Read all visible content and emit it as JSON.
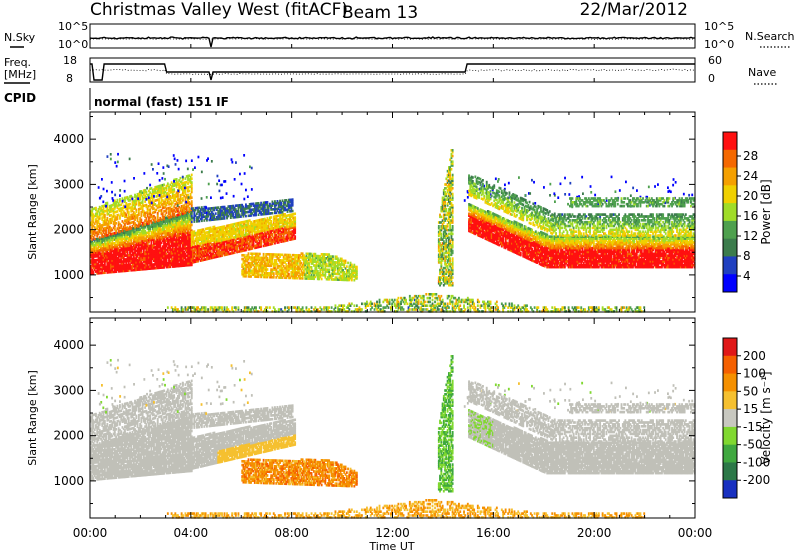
{
  "header": {
    "station": "Christmas Valley West (fitACF)",
    "beam": "Beam 13",
    "date": "22/Mar/2012"
  },
  "aux_panels": {
    "nsky_label": "N.Sky",
    "nsearch_label": "N.Search",
    "noise_ticks": [
      "10^5",
      "10^0"
    ],
    "freq_label_1": "Freq.",
    "freq_label_2": "[MHz]",
    "freq_ticks": [
      "18",
      "8"
    ],
    "nave_label": "Nave",
    "nave_ticks": [
      "60",
      "0"
    ],
    "cpid_label": "CPID",
    "cpid_value": "normal (fast) 151 IF"
  },
  "chart_data": [
    {
      "type": "heatmap",
      "name": "power",
      "ylabel": "Slant Range [km]",
      "xlabel": "",
      "x_ticks": [
        "00:00",
        "04:00",
        "08:00",
        "12:00",
        "16:00",
        "20:00",
        "00:00"
      ],
      "x_range_hours": [
        0,
        24
      ],
      "y_ticks": [
        1000,
        2000,
        3000,
        4000
      ],
      "y_range_km": [
        180,
        4600
      ],
      "colorbar": {
        "label": "Power [dB]",
        "ticks": [
          4,
          8,
          12,
          16,
          20,
          24,
          28
        ],
        "range": [
          0,
          32
        ],
        "colors": [
          "#0000ff",
          "#2040c0",
          "#3c7c4c",
          "#4ea04e",
          "#a0dc28",
          "#f0d000",
          "#f5a000",
          "#f56800",
          "#ff1010"
        ]
      }
    },
    {
      "type": "heatmap",
      "name": "velocity",
      "ylabel": "Slant Range [km]",
      "xlabel": "Time UT",
      "x_ticks": [
        "00:00",
        "04:00",
        "08:00",
        "12:00",
        "16:00",
        "20:00",
        "00:00"
      ],
      "x_range_hours": [
        0,
        24
      ],
      "y_ticks": [
        1000,
        2000,
        3000,
        4000
      ],
      "y_range_km": [
        180,
        4600
      ],
      "colorbar": {
        "label": "Velocity [m s⁻¹]",
        "ticks": [
          200,
          100,
          50,
          15,
          -15,
          -50,
          -100,
          -200
        ],
        "colors": [
          "#1830c0",
          "#2c7848",
          "#3fa83f",
          "#80d830",
          "#c8c8c0",
          "#f5c030",
          "#f59000",
          "#f56000",
          "#e01818"
        ]
      }
    }
  ],
  "colors": {
    "ground_scatter": "#c0c0b8"
  }
}
